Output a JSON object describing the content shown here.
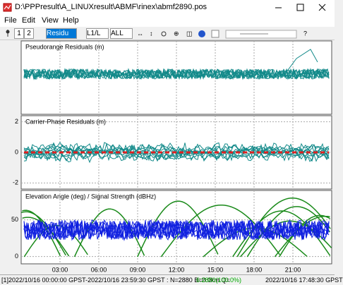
{
  "window": {
    "title": "D:\\PPPresult\\A_LINUXresult\\ABMF\\rinex\\abmf2890.pos"
  },
  "menu": [
    "File",
    "Edit",
    "View",
    "Help"
  ],
  "toolbar": {
    "plots": [
      "1",
      "2"
    ],
    "plot_type": "Residu",
    "frequency": "L1/L",
    "satellites": "ALL"
  },
  "panels": [
    {
      "title": "Pseudorange Residuals (m)"
    },
    {
      "title": "Carrier-Phase Residuals (m)",
      "ylim": [
        -2.4,
        2.4
      ],
      "yticks": [
        2,
        0,
        -2
      ]
    },
    {
      "title": "Elevation Angle (deg) / Signal Strength (dBHz)",
      "ylim": [
        -10,
        90
      ],
      "yticks": [
        50,
        0
      ]
    }
  ],
  "xaxis": {
    "xlim": [
      0,
      24
    ],
    "xticks": [
      {
        "value": 3,
        "label": "03:00"
      },
      {
        "value": 6,
        "label": "06:00"
      },
      {
        "value": 9,
        "label": "09:00"
      },
      {
        "value": 12,
        "label": "12:00"
      },
      {
        "value": 15,
        "label": "15:00"
      },
      {
        "value": 18,
        "label": "18:00"
      },
      {
        "value": 21,
        "label": "21:00"
      }
    ]
  },
  "status": {
    "left": "[1]2022/10/16 00:00:00 GPST-2022/10/16 23:59:30 GPST : N=2880 B=0.0km Q=",
    "quality": "6:2880(100.0%)",
    "right": "2022/10/16 17:48:30 GPST"
  }
}
